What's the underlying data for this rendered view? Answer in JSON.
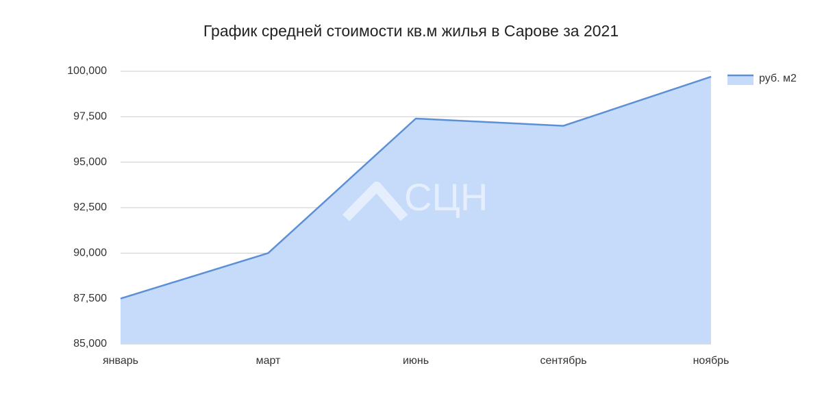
{
  "chart_data": {
    "type": "area",
    "title": "График средней стоимости кв.м жилья в Сарове за 2021",
    "categories": [
      "январь",
      "март",
      "июнь",
      "сентябрь",
      "ноябрь"
    ],
    "series": [
      {
        "name": "руб. м2",
        "color": "#5b8fd6",
        "fill": "#c6dafa",
        "values": [
          87500,
          90000,
          97400,
          97000,
          99700
        ]
      }
    ],
    "ylim": [
      85000,
      100000
    ],
    "yticks": [
      {
        "value": 85000,
        "label": "85,000"
      },
      {
        "value": 87500,
        "label": "87,500"
      },
      {
        "value": 90000,
        "label": "90,000"
      },
      {
        "value": 92500,
        "label": "92,500"
      },
      {
        "value": 95000,
        "label": "95,000"
      },
      {
        "value": 97500,
        "label": "97,500"
      },
      {
        "value": 100000,
        "label": "100,000"
      }
    ],
    "grid": true,
    "legend": "right"
  },
  "watermark": "СЦН"
}
